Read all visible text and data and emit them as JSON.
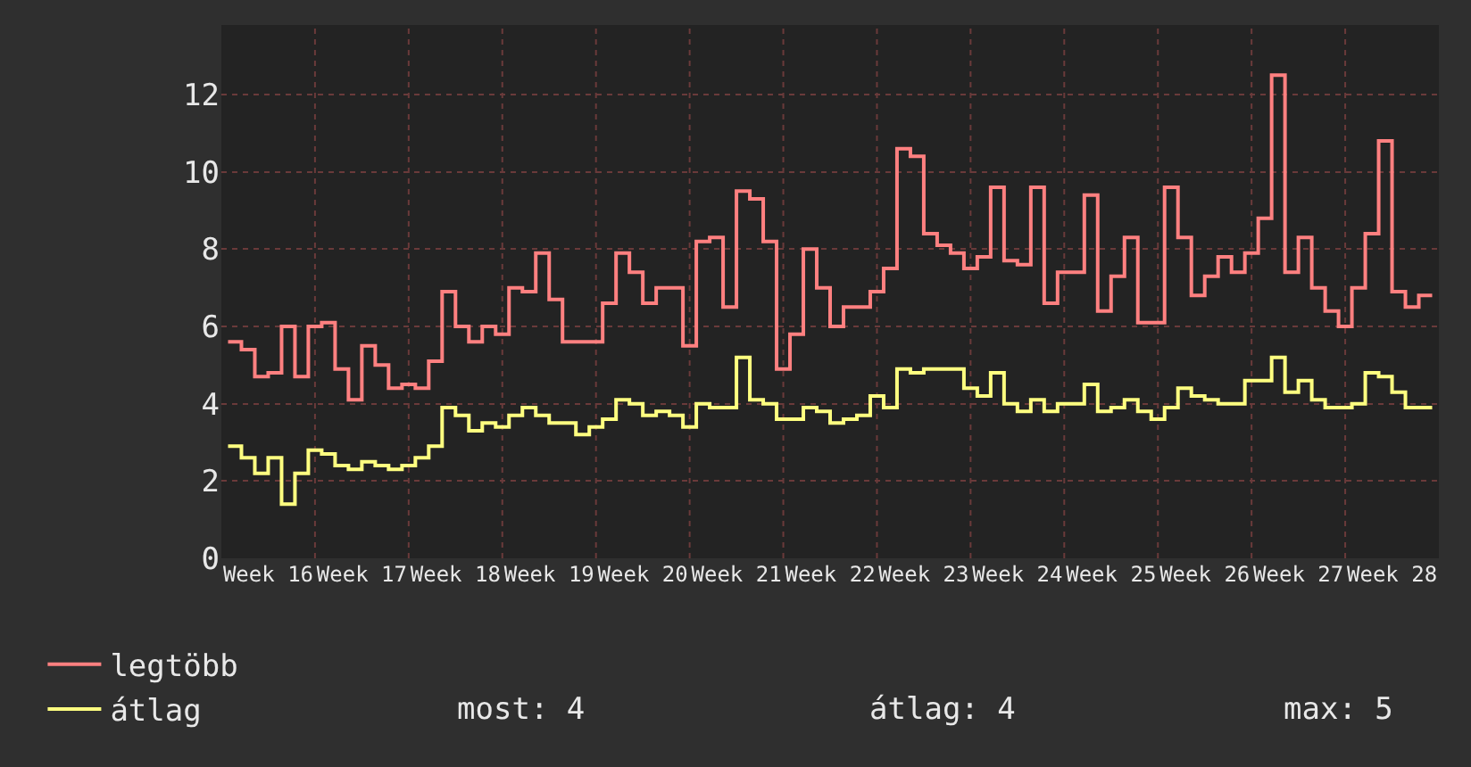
{
  "chart_data": {
    "type": "step",
    "categories": [
      null,
      null,
      null,
      "Week 16",
      null,
      null,
      null,
      null,
      null,
      null,
      "Week 17",
      null,
      null,
      null,
      null,
      null,
      null,
      "Week 18",
      null,
      null,
      null,
      null,
      null,
      null,
      "Week 19",
      null,
      null,
      null,
      null,
      null,
      null,
      "Week 20",
      null,
      null,
      null,
      null,
      null,
      null,
      "Week 21",
      null,
      null,
      null,
      null,
      null,
      null,
      "Week 22",
      null,
      null,
      null,
      null,
      null,
      null,
      "Week 23",
      null,
      null,
      null,
      null,
      null,
      null,
      "Week 24",
      null,
      null,
      null,
      null,
      null,
      null,
      "Week 25",
      null,
      null,
      null,
      null,
      null,
      null,
      "Week 26",
      null,
      null,
      null,
      null,
      null,
      null,
      "Week 27",
      null,
      null,
      null,
      null,
      null,
      null,
      "Week 28",
      null,
      null,
      null
    ],
    "series": [
      {
        "name": "legtöbb",
        "color": "#ff8080",
        "values": [
          5.6,
          5.4,
          4.7,
          4.8,
          6.0,
          4.7,
          6.0,
          6.1,
          4.9,
          4.1,
          5.5,
          5.0,
          4.4,
          4.5,
          4.4,
          5.1,
          6.9,
          6.0,
          5.6,
          6.0,
          5.8,
          7.0,
          6.9,
          7.9,
          6.7,
          5.6,
          5.6,
          5.6,
          6.6,
          7.9,
          7.4,
          6.6,
          7.0,
          7.0,
          5.5,
          8.2,
          8.3,
          6.5,
          9.5,
          9.3,
          8.2,
          4.9,
          5.8,
          8.0,
          7.0,
          6.0,
          6.5,
          6.5,
          6.9,
          7.5,
          10.6,
          10.4,
          8.4,
          8.1,
          7.9,
          7.5,
          7.8,
          9.6,
          7.7,
          7.6,
          9.6,
          6.6,
          7.4,
          7.4,
          9.4,
          6.4,
          7.3,
          8.3,
          6.1,
          6.1,
          9.6,
          8.3,
          6.8,
          7.3,
          7.8,
          7.4,
          7.9,
          8.8,
          12.5,
          7.4,
          8.3,
          7.0,
          6.4,
          6.0,
          7.0,
          8.4,
          10.8,
          6.9,
          6.5,
          6.8,
          6.8
        ]
      },
      {
        "name": "átlag",
        "color": "#ffff80",
        "values": [
          2.9,
          2.6,
          2.2,
          2.6,
          1.4,
          2.2,
          2.8,
          2.7,
          2.4,
          2.3,
          2.5,
          2.4,
          2.3,
          2.4,
          2.6,
          2.9,
          3.9,
          3.7,
          3.3,
          3.5,
          3.4,
          3.7,
          3.9,
          3.7,
          3.5,
          3.5,
          3.2,
          3.4,
          3.6,
          4.1,
          4.0,
          3.7,
          3.8,
          3.7,
          3.4,
          4.0,
          3.9,
          3.9,
          5.2,
          4.1,
          4.0,
          3.6,
          3.6,
          3.9,
          3.8,
          3.5,
          3.6,
          3.7,
          4.2,
          3.9,
          4.9,
          4.8,
          4.9,
          4.9,
          4.9,
          4.4,
          4.2,
          4.8,
          4.0,
          3.8,
          4.1,
          3.8,
          4.0,
          4.0,
          4.5,
          3.8,
          3.9,
          4.1,
          3.8,
          3.6,
          3.9,
          4.4,
          4.2,
          4.1,
          4.0,
          4.0,
          4.6,
          4.6,
          5.2,
          4.3,
          4.6,
          4.1,
          3.9,
          3.9,
          4.0,
          4.8,
          4.7,
          4.3,
          3.9,
          3.9,
          3.9
        ]
      }
    ],
    "ylim": [
      0,
      13.8
    ],
    "yticks": [
      0,
      2,
      4,
      6,
      8,
      10,
      12
    ],
    "grid": true,
    "legend": "bottom left",
    "annotations": [
      "most: 4",
      "átlag: 4",
      "max: 5"
    ]
  }
}
